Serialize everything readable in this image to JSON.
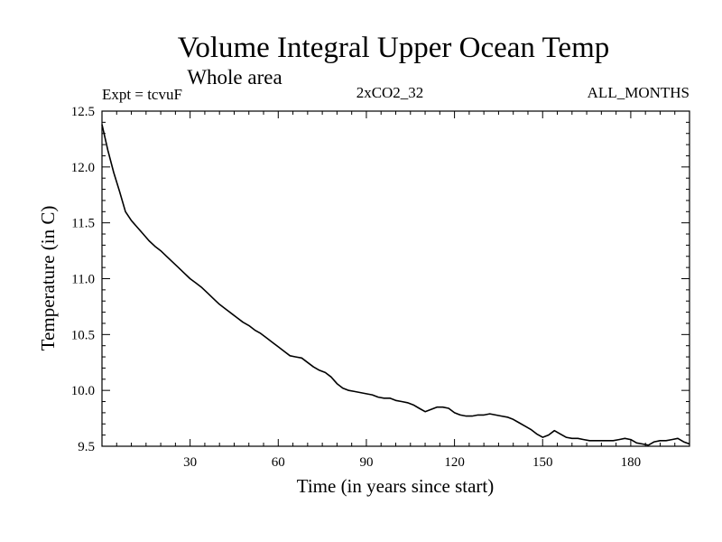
{
  "chart_data": {
    "type": "line",
    "title": "Volume Integral Upper Ocean Temp",
    "subtitle": "Whole area",
    "annotations": {
      "left": "Expt = tcvuF",
      "center": "2xCO2_32",
      "right": "ALL_MONTHS"
    },
    "xlabel": "Time (in years since start)",
    "ylabel": "Temperature (in C)",
    "xlim": [
      0,
      200
    ],
    "ylim": [
      9.5,
      12.5
    ],
    "x_ticks": [
      30,
      60,
      90,
      120,
      150,
      180
    ],
    "x_tick_labels": [
      "30",
      "60",
      "90",
      "120",
      "150",
      "180"
    ],
    "y_ticks": [
      9.5,
      10.0,
      10.5,
      11.0,
      11.5,
      12.0,
      12.5
    ],
    "y_tick_labels": [
      "9.5",
      "10.0",
      "10.5",
      "11.0",
      "11.5",
      "12.0",
      "12.5"
    ],
    "grid": false,
    "series": [
      {
        "color": "#000000",
        "x": [
          0,
          2,
          4,
          6,
          8,
          10,
          12,
          14,
          16,
          18,
          20,
          22,
          24,
          26,
          28,
          30,
          32,
          34,
          36,
          38,
          40,
          42,
          44,
          46,
          48,
          50,
          52,
          54,
          56,
          58,
          60,
          62,
          64,
          66,
          68,
          70,
          72,
          74,
          76,
          78,
          80,
          82,
          84,
          86,
          88,
          90,
          92,
          94,
          96,
          98,
          100,
          102,
          104,
          106,
          108,
          110,
          112,
          114,
          116,
          118,
          120,
          122,
          124,
          126,
          128,
          130,
          132,
          134,
          136,
          138,
          140,
          142,
          144,
          146,
          148,
          150,
          152,
          154,
          156,
          158,
          160,
          162,
          164,
          166,
          168,
          170,
          172,
          174,
          176,
          178,
          180,
          182,
          184,
          186,
          188,
          190,
          192,
          194,
          196,
          198,
          200
        ],
        "y": [
          12.38,
          12.15,
          11.95,
          11.78,
          11.6,
          11.52,
          11.46,
          11.4,
          11.34,
          11.29,
          11.25,
          11.2,
          11.15,
          11.1,
          11.05,
          11.0,
          10.96,
          10.92,
          10.87,
          10.82,
          10.77,
          10.73,
          10.69,
          10.65,
          10.61,
          10.58,
          10.54,
          10.51,
          10.47,
          10.43,
          10.39,
          10.35,
          10.31,
          10.3,
          10.29,
          10.25,
          10.21,
          10.18,
          10.16,
          10.12,
          10.06,
          10.02,
          10.0,
          9.99,
          9.98,
          9.97,
          9.96,
          9.94,
          9.93,
          9.93,
          9.91,
          9.9,
          9.89,
          9.87,
          9.84,
          9.81,
          9.83,
          9.85,
          9.85,
          9.84,
          9.8,
          9.78,
          9.77,
          9.77,
          9.78,
          9.78,
          9.79,
          9.78,
          9.77,
          9.76,
          9.74,
          9.71,
          9.68,
          9.65,
          9.61,
          9.58,
          9.6,
          9.64,
          9.61,
          9.58,
          9.57,
          9.57,
          9.56,
          9.55,
          9.55,
          9.55,
          9.55,
          9.55,
          9.56,
          9.57,
          9.56,
          9.53,
          9.52,
          9.51,
          9.54,
          9.55,
          9.55,
          9.56,
          9.57,
          9.54,
          9.52
        ]
      }
    ]
  }
}
